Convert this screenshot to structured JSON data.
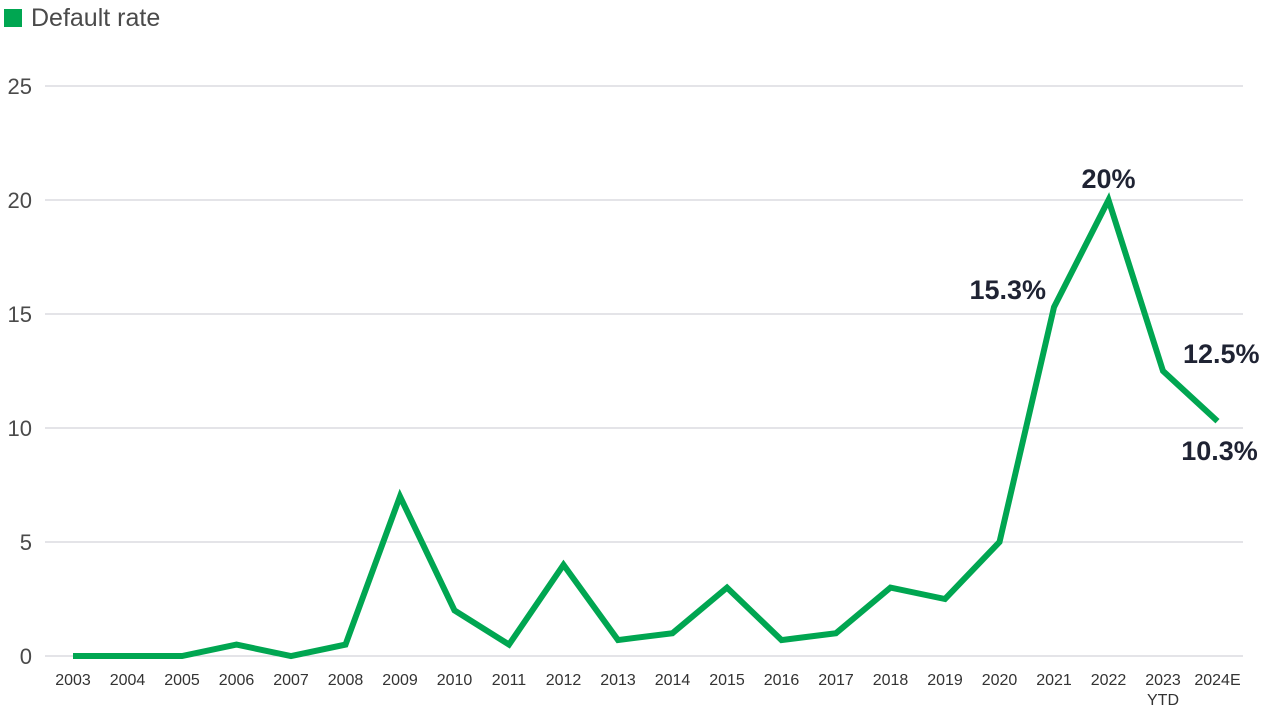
{
  "colors": {
    "line": "#00a651",
    "grid": "#c8c8d2",
    "label": "#1f2333"
  },
  "chart_data": {
    "type": "line",
    "legend": "Default rate",
    "legend_position": "top-left",
    "grid": true,
    "ylim": [
      0,
      25
    ],
    "y_ticks": [
      "0",
      "5",
      "10",
      "15",
      "20",
      "25"
    ],
    "categories": [
      "2003",
      "2004",
      "2005",
      "2006",
      "2007",
      "2008",
      "2009",
      "2010",
      "2011",
      "2012",
      "2013",
      "2014",
      "2015",
      "2016",
      "2017",
      "2018",
      "2019",
      "2020",
      "2021",
      "2022",
      "2023\nYTD",
      "2024E"
    ],
    "series": [
      {
        "name": "Default rate",
        "values": [
          0,
          0,
          0,
          0.5,
          0,
          0.5,
          7,
          2,
          0.5,
          4,
          0.7,
          1,
          3,
          0.7,
          1,
          3,
          2.5,
          5,
          15.3,
          20,
          12.5,
          10.3
        ]
      }
    ],
    "annotations": [
      {
        "index": 18,
        "text": "15.3%"
      },
      {
        "index": 19,
        "text": "20%"
      },
      {
        "index": 20,
        "text": "12.5%"
      },
      {
        "index": 21,
        "text": "10.3%"
      }
    ]
  }
}
